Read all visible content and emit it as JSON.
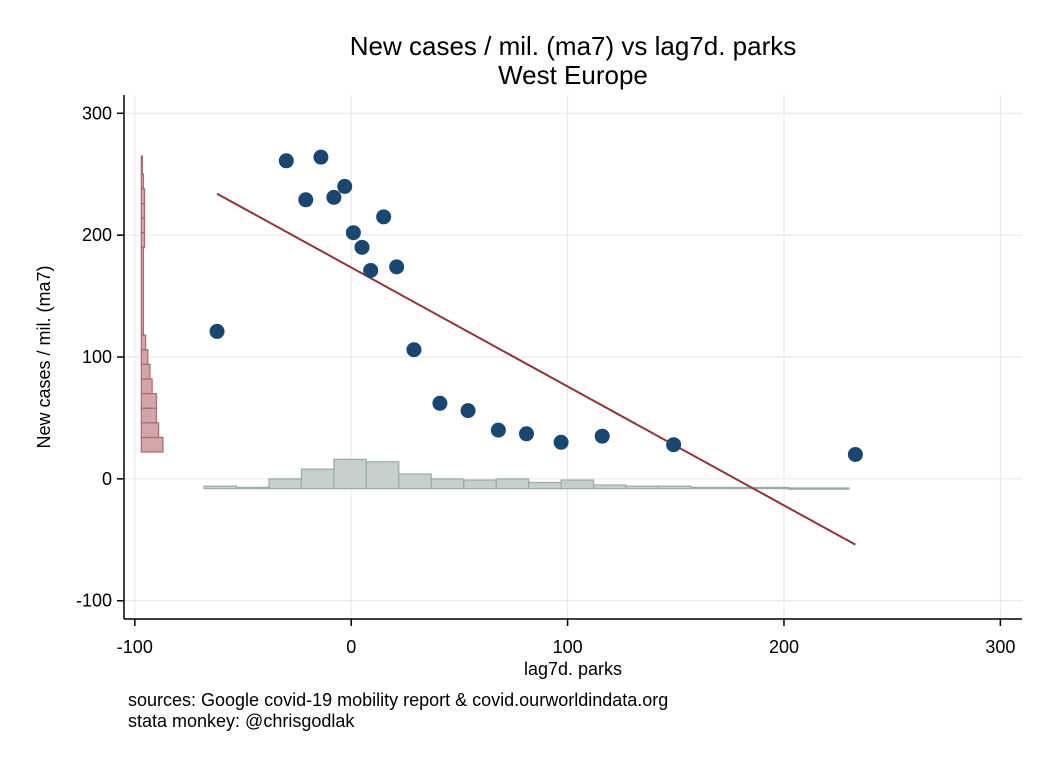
{
  "chart_data": {
    "type": "scatter",
    "title": "New cases / mil. (ma7) vs lag7d. parks",
    "subtitle": "West Europe",
    "xlabel": "lag7d. parks",
    "ylabel": "New cases / mil. (ma7)",
    "xlim": [
      -105,
      310
    ],
    "ylim": [
      -115,
      315
    ],
    "xticks": [
      -100,
      0,
      100,
      200,
      300
    ],
    "yticks": [
      -100,
      0,
      100,
      200,
      300
    ],
    "grid": true,
    "colors": {
      "points": "#1a476f",
      "fit_line": "#90353b",
      "y_hist_fill": "#d4a5a8",
      "y_hist_edge": "#a76a6f",
      "x_hist_fill": "#c5d0cb",
      "x_hist_edge": "#9aaba3",
      "grid": "#e6e6e6"
    },
    "points": [
      {
        "x": -62,
        "y": 121
      },
      {
        "x": -30,
        "y": 261
      },
      {
        "x": -21,
        "y": 229
      },
      {
        "x": -14,
        "y": 264
      },
      {
        "x": -8,
        "y": 231
      },
      {
        "x": -3,
        "y": 240
      },
      {
        "x": 1,
        "y": 202
      },
      {
        "x": 5,
        "y": 190
      },
      {
        "x": 9,
        "y": 171
      },
      {
        "x": 15,
        "y": 215
      },
      {
        "x": 21,
        "y": 174
      },
      {
        "x": 29,
        "y": 106
      },
      {
        "x": 41,
        "y": 62
      },
      {
        "x": 54,
        "y": 56
      },
      {
        "x": 68,
        "y": 40
      },
      {
        "x": 81,
        "y": 37
      },
      {
        "x": 97,
        "y": 30
      },
      {
        "x": 116,
        "y": 35
      },
      {
        "x": 149,
        "y": 28
      },
      {
        "x": 233,
        "y": 20
      }
    ],
    "fit_line": {
      "x": [
        -62,
        233
      ],
      "y": [
        234,
        -54
      ]
    },
    "y_histogram": {
      "base_x": -97,
      "bins": [
        {
          "y0": 22,
          "y1": 34,
          "x": -87
        },
        {
          "y0": 34,
          "y1": 46,
          "x": -89
        },
        {
          "y0": 46,
          "y1": 58,
          "x": -90
        },
        {
          "y0": 58,
          "y1": 70,
          "x": -90
        },
        {
          "y0": 70,
          "y1": 82,
          "x": -92
        },
        {
          "y0": 82,
          "y1": 94,
          "x": -93
        },
        {
          "y0": 94,
          "y1": 106,
          "x": -94
        },
        {
          "y0": 106,
          "y1": 118,
          "x": -95
        },
        {
          "y0": 118,
          "y1": 190,
          "x": -96
        },
        {
          "y0": 190,
          "y1": 202,
          "x": -95.5
        },
        {
          "y0": 202,
          "y1": 214,
          "x": -95.5
        },
        {
          "y0": 214,
          "y1": 226,
          "x": -95.5
        },
        {
          "y0": 226,
          "y1": 238,
          "x": -95.5
        },
        {
          "y0": 238,
          "y1": 250,
          "x": -96
        },
        {
          "y0": 250,
          "y1": 265,
          "x": -96.5
        }
      ]
    },
    "x_histogram": {
      "base_y": -8,
      "bins": [
        {
          "x0": -68,
          "x1": -53,
          "y": -6
        },
        {
          "x0": -53,
          "x1": -38,
          "y": -7
        },
        {
          "x0": -38,
          "x1": -23,
          "y": 0
        },
        {
          "x0": -23,
          "x1": -8,
          "y": 8
        },
        {
          "x0": -8,
          "x1": 7,
          "y": 16
        },
        {
          "x0": 7,
          "x1": 22,
          "y": 14
        },
        {
          "x0": 22,
          "x1": 37,
          "y": 4
        },
        {
          "x0": 37,
          "x1": 52,
          "y": 0
        },
        {
          "x0": 52,
          "x1": 67,
          "y": -1
        },
        {
          "x0": 67,
          "x1": 82,
          "y": 0
        },
        {
          "x0": 82,
          "x1": 97,
          "y": -3
        },
        {
          "x0": 97,
          "x1": 112,
          "y": -1
        },
        {
          "x0": 112,
          "x1": 127,
          "y": -5
        },
        {
          "x0": 127,
          "x1": 142,
          "y": -6
        },
        {
          "x0": 142,
          "x1": 157,
          "y": -6
        },
        {
          "x0": 157,
          "x1": 172,
          "y": -7
        },
        {
          "x0": 172,
          "x1": 187,
          "y": -7
        },
        {
          "x0": 187,
          "x1": 202,
          "y": -7
        },
        {
          "x0": 202,
          "x1": 217,
          "y": -7.5
        },
        {
          "x0": 217,
          "x1": 230,
          "y": -7.5
        }
      ]
    }
  },
  "notes": [
    "sources: Google covid-19 mobility report & covid.ourworldindata.org",
    "stata monkey: @chrisgodlak"
  ]
}
